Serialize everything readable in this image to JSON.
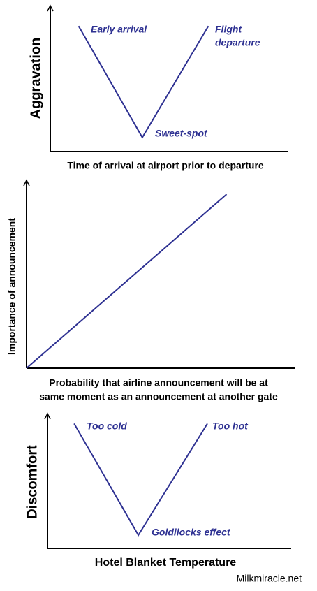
{
  "chart_data": [
    {
      "type": "line",
      "x_label": "Time of arrival at airport prior to departure",
      "y_label": "Aggravation",
      "x": [
        1.2,
        3.9,
        6.7
      ],
      "values": [
        8.9,
        1.0,
        8.9
      ],
      "color": "#2e3192",
      "xlim": [
        0,
        10
      ],
      "ylim": [
        0,
        10
      ],
      "annotations": [
        "Early arrival",
        "Flight",
        "departure",
        "Sweet-spot"
      ]
    },
    {
      "type": "line",
      "x_label": [
        "Probability that airline announcement will be at",
        "same moment as an announcement at another gate"
      ],
      "y_label": "Importance of announcement",
      "x": [
        0,
        7.5
      ],
      "values": [
        0,
        9.5
      ],
      "color": "#2e3192",
      "xlim": [
        0,
        10
      ],
      "ylim": [
        0,
        10
      ],
      "annotations": []
    },
    {
      "type": "line",
      "x_label": "Hotel Blanket Temperature",
      "y_label": "Discomfort",
      "x": [
        1.1,
        3.75,
        6.6
      ],
      "values": [
        9.4,
        1.0,
        9.4
      ],
      "color": "#2e3192",
      "xlim": [
        0,
        10
      ],
      "ylim": [
        0,
        10
      ],
      "annotations": [
        "Too cold",
        "Too hot",
        "Goldilocks effect"
      ]
    }
  ],
  "credit": "Milkmiracle.net"
}
